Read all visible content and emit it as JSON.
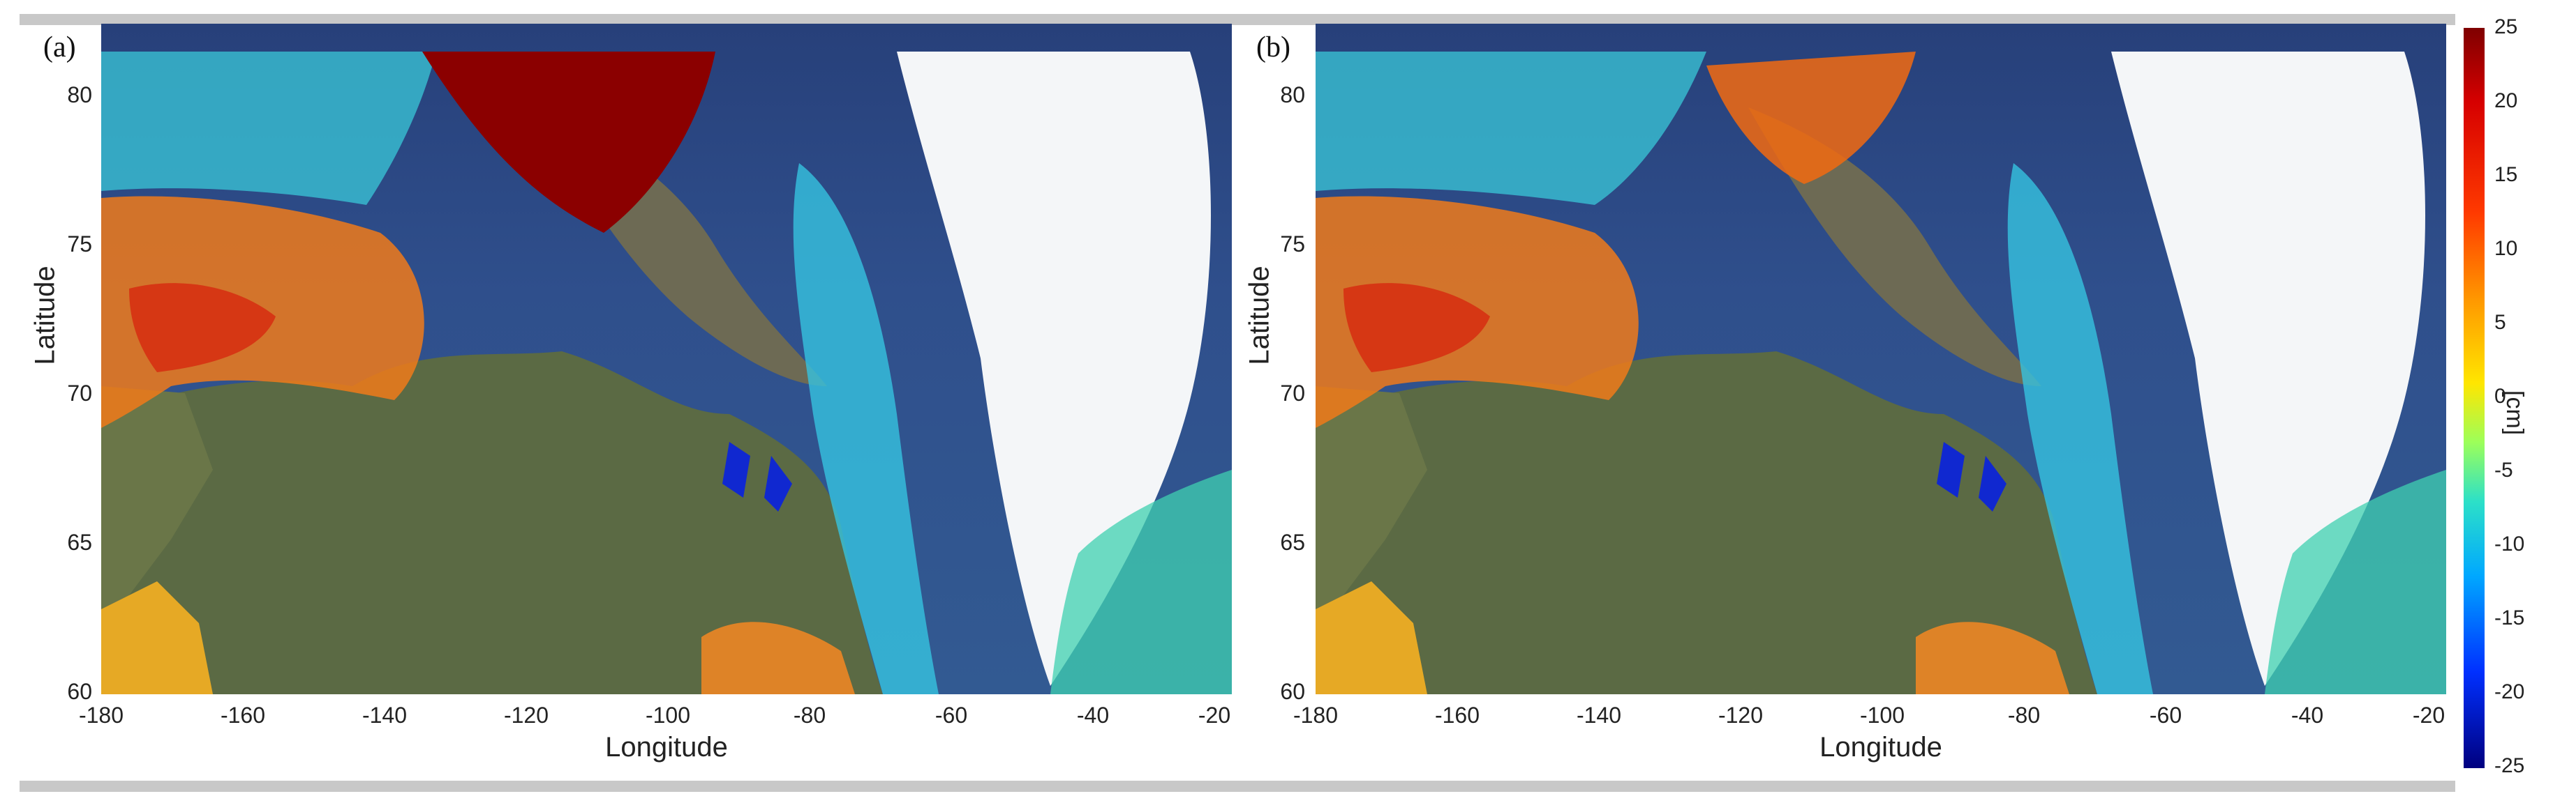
{
  "figure": {
    "panels": [
      {
        "label": "(a)",
        "xlabel": "Longitude",
        "ylabel": "Latitude"
      },
      {
        "label": "(b)",
        "xlabel": "Longitude",
        "ylabel": "Latitude"
      }
    ],
    "x_ticks": [
      "-180",
      "-160",
      "-140",
      "-120",
      "-100",
      "-80",
      "-60",
      "-40",
      "-20"
    ],
    "y_ticks": [
      "80",
      "75",
      "70",
      "65",
      "60"
    ],
    "colorbar": {
      "ticks": [
        "25",
        "20",
        "15",
        "10",
        "5",
        "0",
        "-5",
        "-10",
        "-15",
        "-20",
        "-25"
      ],
      "unit": "[cm]",
      "range": [
        -25,
        25
      ],
      "colormap": "jet"
    },
    "colors": {
      "ocean": "#2f4f8c",
      "land": "#5b6a44",
      "ice": "#f4f6f8",
      "high": "#8b0000",
      "low": "#0000aa"
    }
  }
}
